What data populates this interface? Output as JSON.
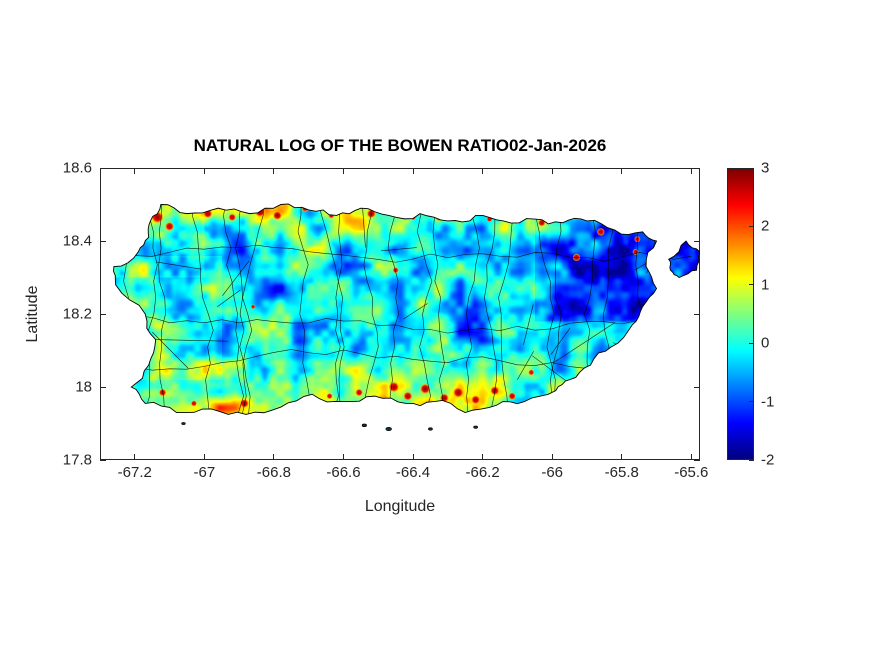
{
  "window": {
    "background": "#ffffff"
  },
  "chart_data": {
    "type": "heatmap",
    "title": "NATURAL LOG OF THE BOWEN RATIO02-Jan-2026",
    "xlabel": "Longitude",
    "ylabel": "Latitude",
    "region_label": "Puerto Rico with municipal boundaries",
    "xlim": [
      -67.3,
      -65.575
    ],
    "ylim": [
      17.8,
      18.6
    ],
    "xticks": [
      {
        "value": -67.2,
        "label": "-67.2"
      },
      {
        "value": -67.0,
        "label": "-67"
      },
      {
        "value": -66.8,
        "label": "-66.8"
      },
      {
        "value": -66.6,
        "label": "-66.6"
      },
      {
        "value": -66.4,
        "label": "-66.4"
      },
      {
        "value": -66.2,
        "label": "-66.2"
      },
      {
        "value": -66.0,
        "label": "-66"
      },
      {
        "value": -65.8,
        "label": "-65.8"
      },
      {
        "value": -65.6,
        "label": "-65.6"
      }
    ],
    "yticks": [
      {
        "value": 17.8,
        "label": "17.8"
      },
      {
        "value": 18.0,
        "label": "18"
      },
      {
        "value": 18.2,
        "label": "18.2"
      },
      {
        "value": 18.4,
        "label": "18.4"
      },
      {
        "value": 18.6,
        "label": "18.6"
      }
    ],
    "clim": [
      -2,
      3
    ],
    "colormap": "jet",
    "colorbar_ticks": [
      {
        "value": 3,
        "label": "3"
      },
      {
        "value": 2,
        "label": "2"
      },
      {
        "value": 1,
        "label": "1"
      },
      {
        "value": 0,
        "label": "0"
      },
      {
        "value": -1,
        "label": "-1"
      },
      {
        "value": -2,
        "label": "-2"
      }
    ],
    "jet_stops": [
      [
        0.0,
        "#00007F"
      ],
      [
        0.125,
        "#0000FF"
      ],
      [
        0.375,
        "#00FFFF"
      ],
      [
        0.625,
        "#FFFF00"
      ],
      [
        0.875,
        "#FF0000"
      ],
      [
        1.0,
        "#7F0000"
      ]
    ],
    "axis_color": "#262626",
    "boundary_color": "#000000",
    "noise_seed": 7,
    "approx_grid": {
      "lons": [
        -67.15,
        -67.0,
        -66.85,
        -66.7,
        -66.55,
        -66.4,
        -66.25,
        -66.1,
        -65.95,
        -65.8,
        -65.65
      ],
      "lats": [
        18.45,
        18.35,
        18.25,
        18.15,
        18.05,
        17.97
      ],
      "values": [
        [
          1.5,
          2.5,
          1.0,
          2.0,
          1.5,
          0.5,
          1.0,
          0.5,
          0.5,
          0.0,
          null
        ],
        [
          0.5,
          0.5,
          0.5,
          0.5,
          0.5,
          0.0,
          0.5,
          0.0,
          -0.5,
          -0.5,
          -0.5
        ],
        [
          0.0,
          0.5,
          0.0,
          0.5,
          0.0,
          0.5,
          0.0,
          0.0,
          -0.5,
          -1.0,
          -0.5
        ],
        [
          0.5,
          0.0,
          0.5,
          0.0,
          0.5,
          0.0,
          0.5,
          0.0,
          -0.5,
          -0.5,
          null
        ],
        [
          0.5,
          1.0,
          0.5,
          1.0,
          0.5,
          1.5,
          1.0,
          0.5,
          0.0,
          -0.5,
          null
        ],
        [
          1.0,
          1.5,
          1.0,
          1.5,
          2.0,
          2.5,
          1.5,
          null,
          null,
          null,
          null
        ]
      ]
    },
    "island_outline": [
      [
        -67.155,
        18.455
      ],
      [
        -67.125,
        18.5
      ],
      [
        -67.05,
        18.475
      ],
      [
        -66.96,
        18.49
      ],
      [
        -66.87,
        18.475
      ],
      [
        -66.78,
        18.5
      ],
      [
        -66.7,
        18.485
      ],
      [
        -66.62,
        18.47
      ],
      [
        -66.55,
        18.49
      ],
      [
        -66.47,
        18.47
      ],
      [
        -66.38,
        18.475
      ],
      [
        -66.3,
        18.455
      ],
      [
        -66.22,
        18.47
      ],
      [
        -66.14,
        18.455
      ],
      [
        -66.05,
        18.46
      ],
      [
        -65.97,
        18.45
      ],
      [
        -65.9,
        18.455
      ],
      [
        -65.82,
        18.43
      ],
      [
        -65.74,
        18.425
      ],
      [
        -65.7,
        18.4
      ],
      [
        -65.73,
        18.33
      ],
      [
        -65.7,
        18.27
      ],
      [
        -65.74,
        18.22
      ],
      [
        -65.77,
        18.17
      ],
      [
        -65.83,
        18.11
      ],
      [
        -65.89,
        18.06
      ],
      [
        -65.95,
        18.02
      ],
      [
        -65.99,
        17.99
      ],
      [
        -66.08,
        17.96
      ],
      [
        -66.16,
        17.95
      ],
      [
        -66.25,
        17.93
      ],
      [
        -66.34,
        17.96
      ],
      [
        -66.42,
        17.955
      ],
      [
        -66.51,
        17.975
      ],
      [
        -66.6,
        17.96
      ],
      [
        -66.69,
        17.98
      ],
      [
        -66.78,
        17.945
      ],
      [
        -66.88,
        17.925
      ],
      [
        -66.98,
        17.94
      ],
      [
        -67.08,
        17.93
      ],
      [
        -67.17,
        17.955
      ],
      [
        -67.21,
        18.0
      ],
      [
        -67.16,
        18.06
      ],
      [
        -67.14,
        18.13
      ],
      [
        -67.17,
        18.2
      ],
      [
        -67.255,
        18.28
      ],
      [
        -67.26,
        18.33
      ],
      [
        -67.19,
        18.37
      ],
      [
        -67.16,
        18.41
      ]
    ],
    "east_islet_outline": [
      [
        -65.665,
        18.35
      ],
      [
        -65.615,
        18.4
      ],
      [
        -65.575,
        18.37
      ],
      [
        -65.585,
        18.32
      ],
      [
        -65.635,
        18.3
      ],
      [
        -65.66,
        18.32
      ]
    ],
    "south_islets": [
      {
        "lon": -66.54,
        "lat": 17.895,
        "r": 2.2
      },
      {
        "lon": -66.47,
        "lat": 17.885,
        "r": 2.8
      },
      {
        "lon": -66.35,
        "lat": 17.885,
        "r": 2.0
      },
      {
        "lon": -66.22,
        "lat": 17.89,
        "r": 2.0
      },
      {
        "lon": -67.06,
        "lat": 17.9,
        "r": 1.8
      }
    ],
    "hotspots": [
      {
        "lon": -67.135,
        "lat": 18.465,
        "r": 4.0,
        "v": 2.9
      },
      {
        "lon": -67.1,
        "lat": 18.44,
        "r": 3.0,
        "v": 2.7
      },
      {
        "lon": -66.99,
        "lat": 18.475,
        "r": 3.0,
        "v": 2.8
      },
      {
        "lon": -66.92,
        "lat": 18.465,
        "r": 2.5,
        "v": 2.7
      },
      {
        "lon": -66.84,
        "lat": 18.48,
        "r": 3.5,
        "v": 3.0
      },
      {
        "lon": -66.79,
        "lat": 18.47,
        "r": 3.0,
        "v": 2.9
      },
      {
        "lon": -66.71,
        "lat": 18.49,
        "r": 2.5,
        "v": 2.8
      },
      {
        "lon": -66.635,
        "lat": 18.47,
        "r": 2.0,
        "v": 2.6
      },
      {
        "lon": -66.52,
        "lat": 18.475,
        "r": 3.0,
        "v": 2.8
      },
      {
        "lon": -66.4,
        "lat": 18.465,
        "r": 2.0,
        "v": 2.6
      },
      {
        "lon": -66.325,
        "lat": 18.465,
        "r": 2.5,
        "v": 2.8
      },
      {
        "lon": -66.18,
        "lat": 18.46,
        "r": 2.0,
        "v": 2.7
      },
      {
        "lon": -66.03,
        "lat": 18.45,
        "r": 2.5,
        "v": 2.8
      },
      {
        "lon": -65.86,
        "lat": 18.425,
        "r": 2.5,
        "v": 2.7
      },
      {
        "lon": -65.755,
        "lat": 18.405,
        "r": 2.0,
        "v": 2.6
      },
      {
        "lon": -65.93,
        "lat": 18.355,
        "r": 2.5,
        "v": 2.8
      },
      {
        "lon": -65.76,
        "lat": 18.37,
        "r": 2.0,
        "v": 2.6
      },
      {
        "lon": -66.45,
        "lat": 18.32,
        "r": 2.0,
        "v": 2.5
      },
      {
        "lon": -66.86,
        "lat": 18.22,
        "r": 1.5,
        "v": 2.4
      },
      {
        "lon": -67.225,
        "lat": 18.225,
        "r": 2.0,
        "v": 2.6
      },
      {
        "lon": -66.455,
        "lat": 18.0,
        "r": 3.5,
        "v": 2.9
      },
      {
        "lon": -66.415,
        "lat": 17.975,
        "r": 3.0,
        "v": 2.8
      },
      {
        "lon": -66.365,
        "lat": 17.995,
        "r": 3.5,
        "v": 3.0
      },
      {
        "lon": -66.31,
        "lat": 17.97,
        "r": 3.0,
        "v": 2.9
      },
      {
        "lon": -66.27,
        "lat": 17.985,
        "r": 3.5,
        "v": 2.9
      },
      {
        "lon": -66.22,
        "lat": 17.965,
        "r": 3.0,
        "v": 2.8
      },
      {
        "lon": -66.165,
        "lat": 17.99,
        "r": 3.0,
        "v": 2.9
      },
      {
        "lon": -66.115,
        "lat": 17.975,
        "r": 2.5,
        "v": 2.7
      },
      {
        "lon": -66.555,
        "lat": 17.985,
        "r": 2.5,
        "v": 2.7
      },
      {
        "lon": -66.64,
        "lat": 17.975,
        "r": 2.0,
        "v": 2.6
      },
      {
        "lon": -66.885,
        "lat": 17.955,
        "r": 3.0,
        "v": 2.8
      },
      {
        "lon": -67.03,
        "lat": 17.955,
        "r": 2.0,
        "v": 2.6
      },
      {
        "lon": -67.12,
        "lat": 17.985,
        "r": 2.5,
        "v": 2.7
      },
      {
        "lon": -66.06,
        "lat": 18.04,
        "r": 2.0,
        "v": 2.5
      }
    ]
  }
}
